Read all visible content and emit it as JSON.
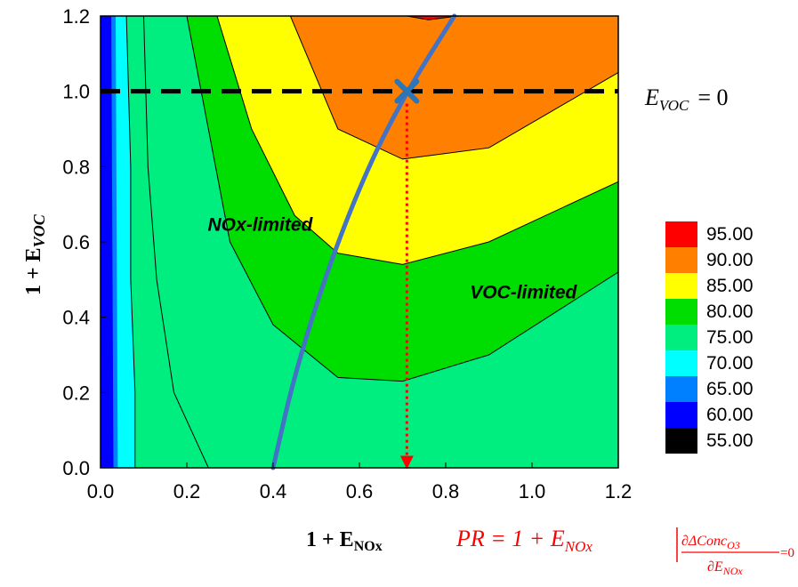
{
  "chart_data": {
    "type": "contour",
    "title": "",
    "xlabel": {
      "base": "1 + E",
      "sub": "NOx"
    },
    "ylabel": {
      "base": "1 + E",
      "sub": "VOC"
    },
    "xlim": [
      0.0,
      1.2
    ],
    "ylim": [
      0.0,
      1.2
    ],
    "xticks": [
      "0.0",
      "0.2",
      "0.4",
      "0.6",
      "0.8",
      "1.0",
      "1.2"
    ],
    "yticks": [
      "0.0",
      "0.2",
      "0.4",
      "0.6",
      "0.8",
      "1.0",
      "1.2"
    ],
    "grid": false,
    "legend_position": "right",
    "levels": [
      {
        "label": "95.00",
        "color": "#ff0000"
      },
      {
        "label": "90.00",
        "color": "#ff8000"
      },
      {
        "label": "85.00",
        "color": "#ffff00"
      },
      {
        "label": "80.00",
        "color": "#00dd00"
      },
      {
        "label": "75.00",
        "color": "#00ee80"
      },
      {
        "label": "70.00",
        "color": "#00ffff"
      },
      {
        "label": "65.00",
        "color": "#0080ff"
      },
      {
        "label": "60.00",
        "color": "#0000ff"
      },
      {
        "label": "55.00",
        "color": "#000000"
      }
    ],
    "contour_lines": [
      {
        "level": 70,
        "points": [
          [
            0.08,
            0.0
          ],
          [
            0.08,
            0.2
          ],
          [
            0.07,
            0.5
          ],
          [
            0.07,
            0.8
          ],
          [
            0.06,
            1.2
          ]
        ]
      },
      {
        "level": 75,
        "points": [
          [
            0.25,
            0.0
          ],
          [
            0.17,
            0.2
          ],
          [
            0.13,
            0.5
          ],
          [
            0.11,
            0.8
          ],
          [
            0.1,
            1.2
          ]
        ]
      },
      {
        "level": 80,
        "points": [
          [
            0.2,
            1.2
          ],
          [
            0.3,
            0.6
          ],
          [
            0.4,
            0.38
          ],
          [
            0.55,
            0.24
          ],
          [
            0.7,
            0.23
          ],
          [
            0.9,
            0.3
          ],
          [
            1.2,
            0.52
          ]
        ]
      },
      {
        "level": 85,
        "points": [
          [
            0.27,
            1.2
          ],
          [
            0.35,
            0.9
          ],
          [
            0.45,
            0.67
          ],
          [
            0.55,
            0.57
          ],
          [
            0.7,
            0.54
          ],
          [
            0.9,
            0.6
          ],
          [
            1.2,
            0.76
          ]
        ]
      },
      {
        "level": 90,
        "points": [
          [
            0.44,
            1.2
          ],
          [
            0.55,
            0.9
          ],
          [
            0.7,
            0.82
          ],
          [
            0.9,
            0.85
          ],
          [
            1.2,
            1.05
          ]
        ]
      },
      {
        "level": 95,
        "points": [
          [
            0.71,
            1.2
          ],
          [
            0.76,
            1.19
          ],
          [
            0.83,
            1.2
          ]
        ]
      }
    ],
    "ridge_line": {
      "points": [
        [
          0.4,
          0.0
        ],
        [
          0.45,
          0.25
        ],
        [
          0.53,
          0.54
        ],
        [
          0.62,
          0.8
        ],
        [
          0.71,
          1.0
        ],
        [
          0.82,
          1.2
        ]
      ],
      "color": "#4472c4"
    },
    "reference_line": {
      "y": 1.0,
      "style": "dashed",
      "color": "#000000"
    },
    "marker": {
      "x": 0.71,
      "y": 1.0,
      "symbol": "x",
      "color": "#2e75b6"
    },
    "drop_line": {
      "x": 0.71,
      "from_y": 1.0,
      "to_y": 0.0,
      "color": "#ff0000",
      "style": "dotted-arrow"
    },
    "annotations": {
      "nox_limited": {
        "text": "NOx-limited",
        "x": 0.37,
        "y": 0.63
      },
      "voc_limited": {
        "text": "VOC-limited",
        "x": 0.98,
        "y": 0.45
      },
      "evoc_zero": {
        "lhs_base": "E",
        "lhs_sub": "VOC",
        "rhs": "= 0"
      },
      "pr_formula": {
        "lhs": "PR = 1 + E",
        "lhs_sub": "NOx",
        "cond_num_base": "∂ΔConc",
        "cond_num_sub": "O3",
        "cond_den_base": "∂E",
        "cond_den_sub": "NOx",
        "cond_rhs": "=0"
      }
    }
  }
}
